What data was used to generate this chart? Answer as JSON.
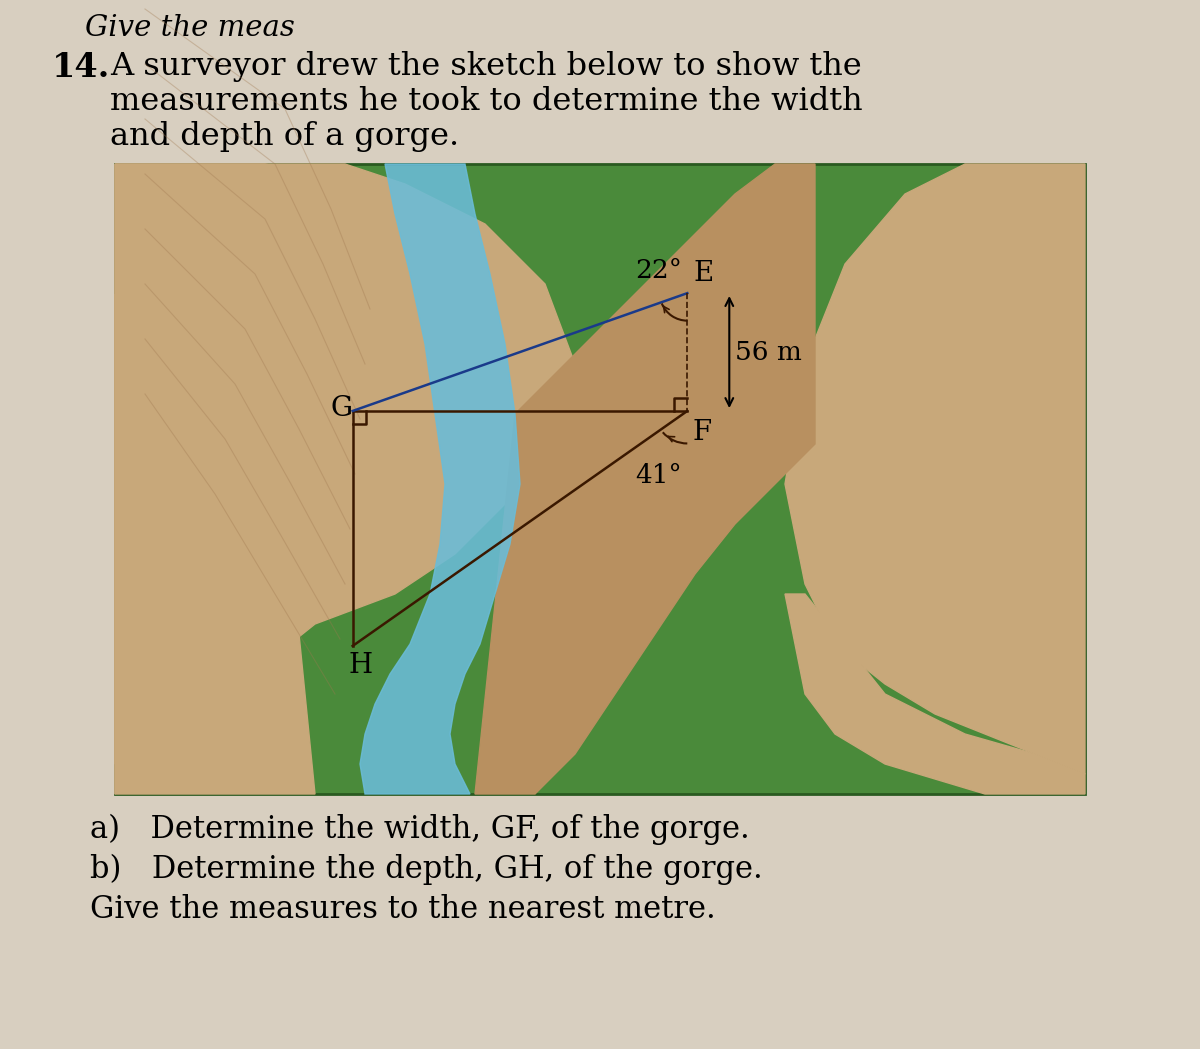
{
  "page_bg": "#d8cfc0",
  "diagram_bg_green": "#4a8a3a",
  "cliff_tan_light": "#c8a87a",
  "cliff_tan_mid": "#b89060",
  "cliff_tan_dark": "#a07040",
  "river_blue": "#6abcd8",
  "line_color": "#3a1800",
  "blue_line_color": "#1a3a8a",
  "header": "Give the meas",
  "num": "14.",
  "line1": "A surveyor drew the sketch below to show the",
  "line2": "measurements he took to determine the width",
  "line3": "and depth of a gorge.",
  "qa": "a) Determine the width, GF, of the gorge.",
  "qb": "b) Determine the depth, GH, of the gorge.",
  "qc": "Give the measures to the nearest metre.",
  "label_E": "E",
  "label_F": "F",
  "label_G": "G",
  "label_H": "H",
  "label_22": "22°",
  "label_41": "41°",
  "label_56": "56 m",
  "font_header": 21,
  "font_body": 23,
  "font_diagram": 19,
  "font_question": 22
}
